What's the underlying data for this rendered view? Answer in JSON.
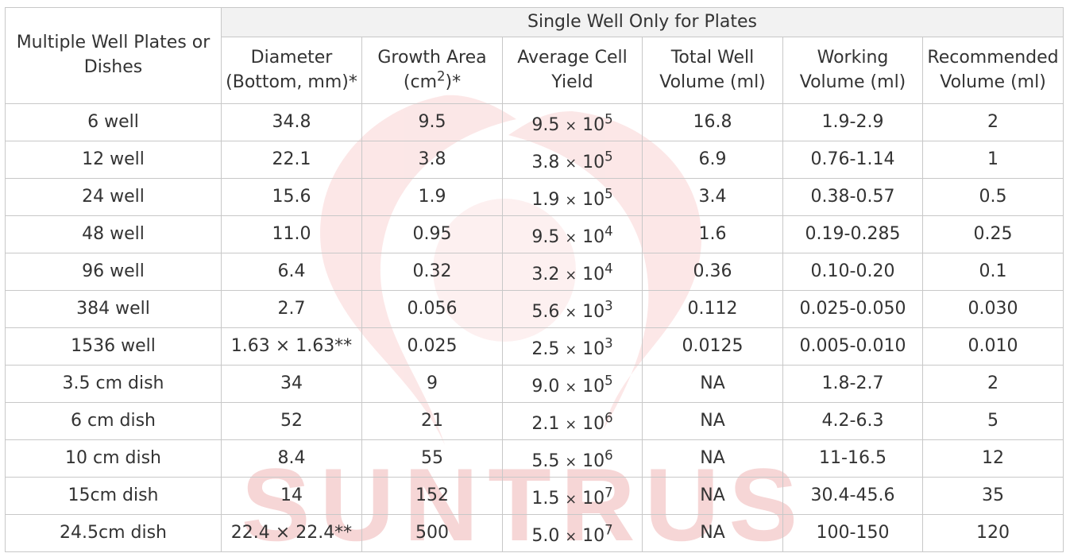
{
  "table": {
    "corner_header": "Multiple Well Plates or Dishes",
    "group_header": "Single Well Only for Plates",
    "columns": {
      "diameter": "Diameter (Bottom, mm)*",
      "growth_area_prefix": "Growth Area (cm",
      "growth_area_exp": "2",
      "growth_area_suffix": ")*",
      "cell_yield": "Average Cell Yield",
      "total_volume": "Total Well Volume (ml)",
      "working_volume": "Working Volume (ml)",
      "recommended_volume": "Recommended Volume (ml)"
    },
    "rows": [
      {
        "name": "6 well",
        "diameter": "34.8",
        "area": "9.5",
        "yield_base": "9.5",
        "yield_exp": "5",
        "total": "16.8",
        "working": "1.9-2.9",
        "recommended": "2"
      },
      {
        "name": "12 well",
        "diameter": "22.1",
        "area": "3.8",
        "yield_base": "3.8",
        "yield_exp": "5",
        "total": "6.9",
        "working": "0.76-1.14",
        "recommended": "1"
      },
      {
        "name": "24 well",
        "diameter": "15.6",
        "area": "1.9",
        "yield_base": "1.9",
        "yield_exp": "5",
        "total": "3.4",
        "working": "0.38-0.57",
        "recommended": "0.5"
      },
      {
        "name": "48 well",
        "diameter": "11.0",
        "area": "0.95",
        "yield_base": "9.5",
        "yield_exp": "4",
        "total": "1.6",
        "working": "0.19-0.285",
        "recommended": "0.25"
      },
      {
        "name": "96 well",
        "diameter": "6.4",
        "area": "0.32",
        "yield_base": "3.2",
        "yield_exp": "4",
        "total": "0.36",
        "working": "0.10-0.20",
        "recommended": "0.1"
      },
      {
        "name": "384 well",
        "diameter": "2.7",
        "area": "0.056",
        "yield_base": "5.6",
        "yield_exp": "3",
        "total": "0.112",
        "working": "0.025-0.050",
        "recommended": "0.030"
      },
      {
        "name": "1536 well",
        "diameter": "1.63 × 1.63**",
        "area": "0.025",
        "yield_base": "2.5",
        "yield_exp": "3",
        "total": "0.0125",
        "working": "0.005-0.010",
        "recommended": "0.010"
      },
      {
        "name": "3.5 cm dish",
        "diameter": "34",
        "area": "9",
        "yield_base": "9.0",
        "yield_exp": "5",
        "total": "NA",
        "working": "1.8-2.7",
        "recommended": "2"
      },
      {
        "name": "6 cm dish",
        "diameter": "52",
        "area": "21",
        "yield_base": "2.1",
        "yield_exp": "6",
        "total": "NA",
        "working": "4.2-6.3",
        "recommended": "5"
      },
      {
        "name": "10 cm dish",
        "diameter": "8.4",
        "area": "55",
        "yield_base": "5.5",
        "yield_exp": "6",
        "total": "NA",
        "working": "11-16.5",
        "recommended": "12"
      },
      {
        "name": "15cm dish",
        "diameter": "14",
        "area": "152",
        "yield_base": "1.5",
        "yield_exp": "7",
        "total": "NA",
        "working": "30.4-45.6",
        "recommended": "35"
      },
      {
        "name": "24.5cm dish",
        "diameter": "22.4 × 22.4**",
        "area": "500",
        "yield_base": "5.0",
        "yield_exp": "7",
        "total": "NA",
        "working": "100-150",
        "recommended": "120"
      }
    ],
    "times_symbol": "×",
    "ten": "10"
  },
  "watermark": {
    "text": "SUNTRUS",
    "color": "#f6d6d6"
  }
}
